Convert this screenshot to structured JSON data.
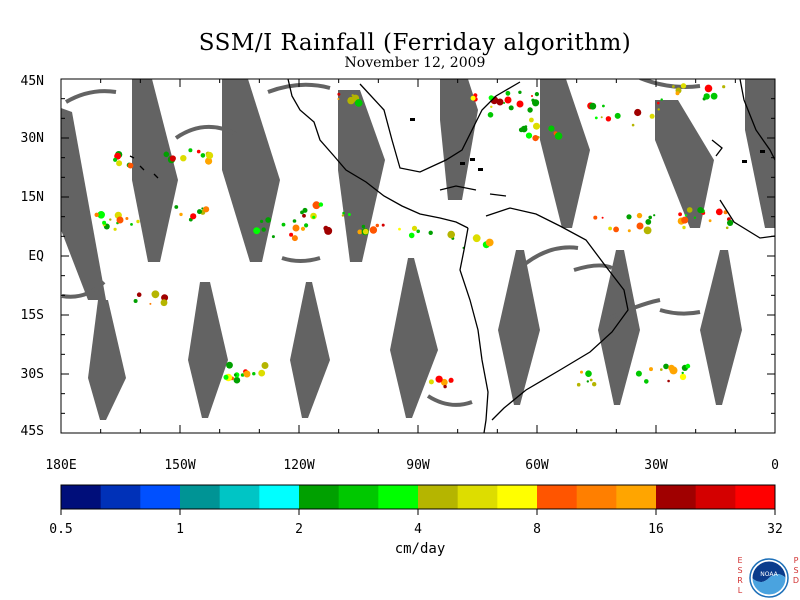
{
  "title": "SSM/I Rainfall (Ferriday algorithm)",
  "date": "November 12, 2009",
  "map": {
    "lat_labels": [
      "45N",
      "30N",
      "15N",
      "EQ",
      "15S",
      "30S",
      "45S"
    ],
    "lon_labels": [
      "180E",
      "150W",
      "120W",
      "90W",
      "60W",
      "30W",
      "0"
    ],
    "background": "#ffffff",
    "no_data_color": "#636363",
    "coastline_color": "#000000"
  },
  "colorbar": {
    "units": "cm/day",
    "tick_labels": [
      "0.5",
      "1",
      "2",
      "4",
      "8",
      "16",
      "32"
    ],
    "colors": [
      "#000e7a",
      "#0031b8",
      "#0050ff",
      "#009495",
      "#00c5c5",
      "#00ffff",
      "#00a000",
      "#00c800",
      "#00ff00",
      "#b5b500",
      "#dddd00",
      "#ffff00",
      "#ff5500",
      "#ff7f00",
      "#ffa500",
      "#a00000",
      "#d40000",
      "#ff0000"
    ]
  },
  "logo": {
    "left_letters": [
      "E",
      "S",
      "R",
      "L"
    ],
    "right_letters": [
      "P",
      "S",
      "D"
    ],
    "emblem_text": "NOAA"
  }
}
